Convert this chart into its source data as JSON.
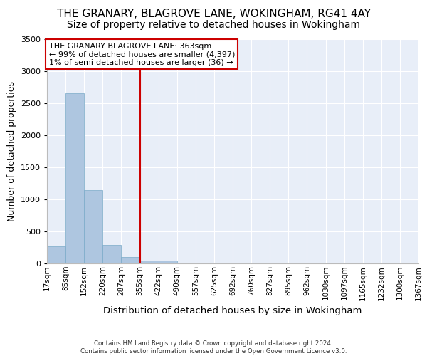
{
  "title": "THE GRANARY, BLAGROVE LANE, WOKINGHAM, RG41 4AY",
  "subtitle": "Size of property relative to detached houses in Wokingham",
  "xlabel": "Distribution of detached houses by size in Wokingham",
  "ylabel": "Number of detached properties",
  "footer_line1": "Contains HM Land Registry data © Crown copyright and database right 2024.",
  "footer_line2": "Contains public sector information licensed under the Open Government Licence v3.0.",
  "bar_values": [
    270,
    2650,
    1150,
    290,
    100,
    40,
    40,
    5,
    2,
    1,
    1,
    0,
    0,
    0,
    0,
    0,
    0,
    0,
    0,
    0
  ],
  "x_labels": [
    "17sqm",
    "85sqm",
    "152sqm",
    "220sqm",
    "287sqm",
    "355sqm",
    "422sqm",
    "490sqm",
    "557sqm",
    "625sqm",
    "692sqm",
    "760sqm",
    "827sqm",
    "895sqm",
    "962sqm",
    "1030sqm",
    "1097sqm",
    "1165sqm",
    "1232sqm",
    "1300sqm",
    "1367sqm"
  ],
  "bar_color": "#aec6e0",
  "bar_edge_color": "#7aaac8",
  "vline_color": "#cc0000",
  "annotation_text": "THE GRANARY BLAGROVE LANE: 363sqm\n← 99% of detached houses are smaller (4,397)\n1% of semi-detached houses are larger (36) →",
  "annotation_box_color": "#cc0000",
  "annotation_text_color": "black",
  "ylim": [
    0,
    3500
  ],
  "yticks": [
    0,
    500,
    1000,
    1500,
    2000,
    2500,
    3000,
    3500
  ],
  "bg_color": "#e8eef8",
  "grid_color": "white",
  "title_fontsize": 11,
  "subtitle_fontsize": 10,
  "ylabel_fontsize": 9,
  "xlabel_fontsize": 9.5,
  "tick_fontsize": 7.5,
  "annotation_fontsize": 8
}
